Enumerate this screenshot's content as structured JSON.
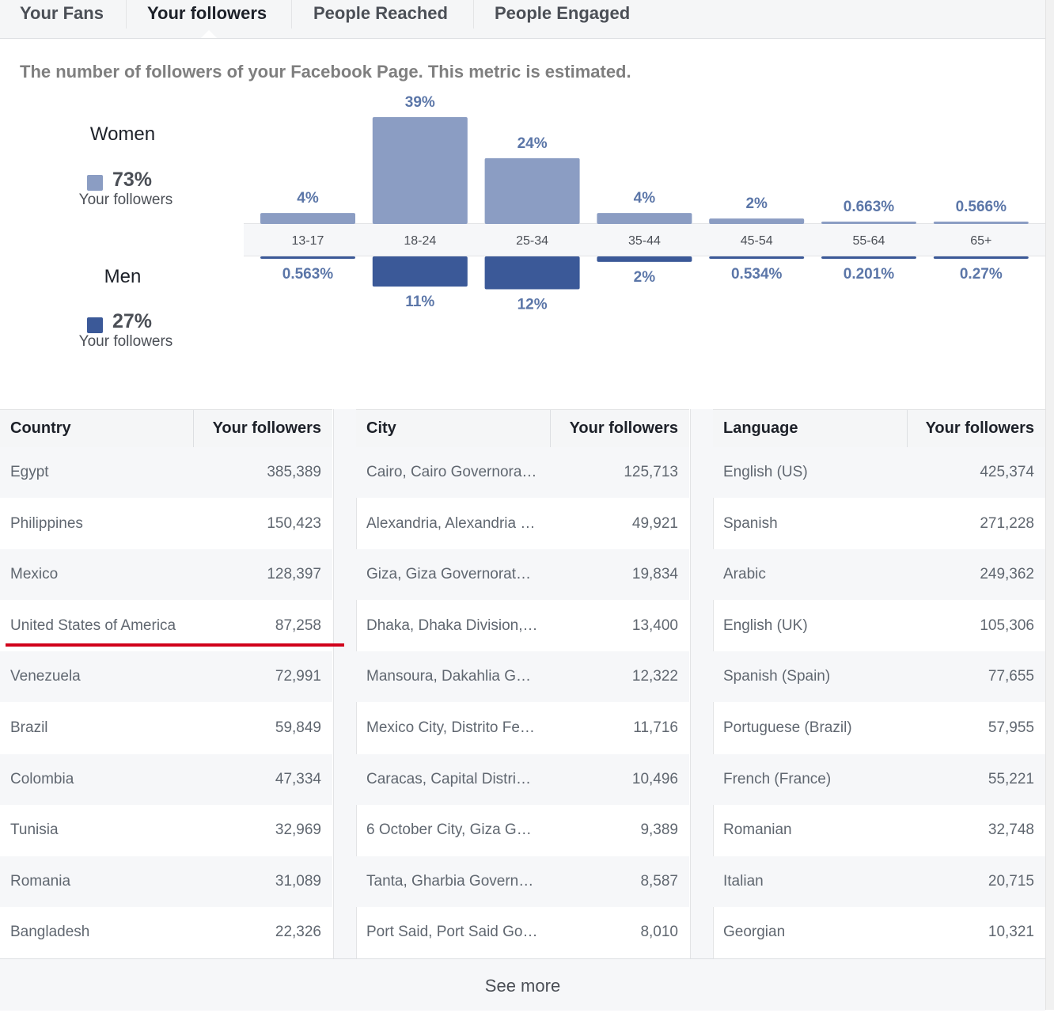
{
  "tabs": [
    {
      "label": "Your Fans",
      "active": false
    },
    {
      "label": "Your followers",
      "active": true
    },
    {
      "label": "People Reached",
      "active": false
    },
    {
      "label": "People Engaged",
      "active": false
    }
  ],
  "description": "The number of followers of your Facebook Page. This metric is estimated.",
  "gender": {
    "women": {
      "title": "Women",
      "pct": "73%",
      "sub": "Your followers",
      "color": "#8b9dc3"
    },
    "men": {
      "title": "Men",
      "pct": "27%",
      "sub": "Your followers",
      "color": "#3b5998"
    }
  },
  "chart_data": {
    "type": "bar",
    "categories": [
      "13-17",
      "18-24",
      "25-34",
      "35-44",
      "45-54",
      "55-64",
      "65+"
    ],
    "series": [
      {
        "name": "Women",
        "values": [
          4,
          39,
          24,
          4,
          2,
          0.663,
          0.566
        ],
        "labels": [
          "4%",
          "39%",
          "24%",
          "4%",
          "2%",
          "0.663%",
          "0.566%"
        ],
        "color": "#8b9dc3"
      },
      {
        "name": "Men",
        "values": [
          0.563,
          11,
          12,
          2,
          0.534,
          0.201,
          0.27
        ],
        "labels": [
          "0.563%",
          "11%",
          "12%",
          "2%",
          "0.534%",
          "0.201%",
          "0.27%"
        ],
        "color": "#3b5998"
      }
    ]
  },
  "tables": {
    "country": {
      "header": [
        "Country",
        "Your followers"
      ],
      "rows": [
        [
          "Egypt",
          "385,389"
        ],
        [
          "Philippines",
          "150,423"
        ],
        [
          "Mexico",
          "128,397"
        ],
        [
          "United States of America",
          "87,258"
        ],
        [
          "Venezuela",
          "72,991"
        ],
        [
          "Brazil",
          "59,849"
        ],
        [
          "Colombia",
          "47,334"
        ],
        [
          "Tunisia",
          "32,969"
        ],
        [
          "Romania",
          "31,089"
        ],
        [
          "Bangladesh",
          "22,326"
        ]
      ]
    },
    "city": {
      "header": [
        "City",
        "Your followers"
      ],
      "rows": [
        [
          "Cairo, Cairo Governora…",
          "125,713"
        ],
        [
          "Alexandria, Alexandria …",
          "49,921"
        ],
        [
          "Giza, Giza Governorat…",
          "19,834"
        ],
        [
          "Dhaka, Dhaka Division,…",
          "13,400"
        ],
        [
          "Mansoura, Dakahlia G…",
          "12,322"
        ],
        [
          "Mexico City, Distrito Fe…",
          "11,716"
        ],
        [
          "Caracas, Capital Distri…",
          "10,496"
        ],
        [
          "6 October City, Giza G…",
          "9,389"
        ],
        [
          "Tanta, Gharbia Govern…",
          "8,587"
        ],
        [
          "Port Said, Port Said Go…",
          "8,010"
        ]
      ]
    },
    "language": {
      "header": [
        "Language",
        "Your followers"
      ],
      "rows": [
        [
          "English (US)",
          "425,374"
        ],
        [
          "Spanish",
          "271,228"
        ],
        [
          "Arabic",
          "249,362"
        ],
        [
          "English (UK)",
          "105,306"
        ],
        [
          "Spanish (Spain)",
          "77,655"
        ],
        [
          "Portuguese (Brazil)",
          "57,955"
        ],
        [
          "French (France)",
          "55,221"
        ],
        [
          "Romanian",
          "32,748"
        ],
        [
          "Italian",
          "20,715"
        ],
        [
          "Georgian",
          "10,321"
        ]
      ]
    }
  },
  "see_more": "See more"
}
